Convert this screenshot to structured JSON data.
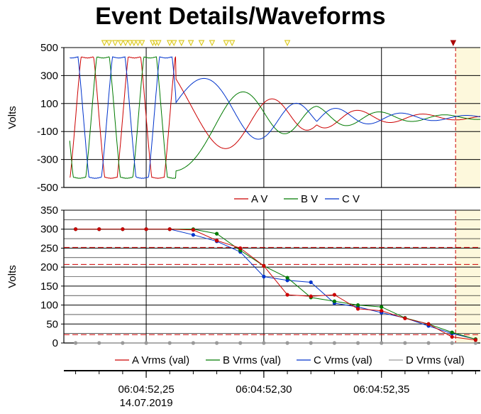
{
  "page": {
    "title": "Event Details/Waveforms"
  },
  "chart_data": [
    {
      "type": "line",
      "ylabel": "Volts",
      "ylim": [
        -500,
        500
      ],
      "yticks": [
        500,
        300,
        100,
        -100,
        -300,
        -500
      ],
      "ytick_labels": [
        "500",
        "300",
        "100",
        "-100",
        "-300",
        "-500"
      ],
      "grid": true,
      "legend_position": "bottom",
      "series": [
        {
          "name": "A V",
          "color": "#cc0000",
          "phase_deg": 0
        },
        {
          "name": "B V",
          "color": "#007a00",
          "phase_deg": -120
        },
        {
          "name": "C V",
          "color": "#0033cc",
          "phase_deg": 120
        }
      ],
      "waveform": {
        "t_start": 0.2175,
        "t_end": 0.392,
        "frequency_hz": 50,
        "steady_amplitude": 430,
        "decay_start": 0.2625,
        "decay_tau": 0.038
      },
      "event_markers_color": "#d4c000",
      "trigger_marker_color": "#aa0000"
    },
    {
      "type": "line",
      "ylabel": "Volts",
      "ylim": [
        0,
        350
      ],
      "yticks": [
        0,
        50,
        100,
        150,
        200,
        250,
        300,
        350
      ],
      "ytick_labels": [
        "0",
        "50",
        "100",
        "150",
        "200",
        "250",
        "300",
        "350"
      ],
      "grid": true,
      "legend_position": "bottom",
      "threshold_lines": [
        252,
        207,
        22
      ],
      "series": [
        {
          "name": "A Vrms (val)",
          "color": "#cc0000",
          "x": [
            0.22,
            0.23,
            0.24,
            0.25,
            0.26,
            0.27,
            0.28,
            0.29,
            0.3,
            0.31,
            0.32,
            0.33,
            0.34,
            0.35,
            0.36,
            0.37,
            0.38,
            0.39
          ],
          "y": [
            300,
            300,
            300,
            300,
            300,
            298,
            270,
            250,
            203,
            127,
            123,
            127,
            90,
            85,
            65,
            50,
            16,
            8
          ]
        },
        {
          "name": "B Vrms (val)",
          "color": "#007a00",
          "x": [
            0.22,
            0.23,
            0.24,
            0.25,
            0.26,
            0.27,
            0.28,
            0.29,
            0.3,
            0.31,
            0.32,
            0.33,
            0.34,
            0.35,
            0.36,
            0.37,
            0.38,
            0.39
          ],
          "y": [
            300,
            300,
            300,
            300,
            300,
            300,
            288,
            244,
            203,
            172,
            120,
            110,
            100,
            95,
            66,
            50,
            28,
            10
          ]
        },
        {
          "name": "C Vrms (val)",
          "color": "#0033cc",
          "x": [
            0.22,
            0.23,
            0.24,
            0.25,
            0.26,
            0.27,
            0.28,
            0.29,
            0.3,
            0.31,
            0.32,
            0.33,
            0.34,
            0.35,
            0.36,
            0.37,
            0.38,
            0.39
          ],
          "y": [
            300,
            300,
            300,
            300,
            300,
            285,
            268,
            240,
            175,
            165,
            160,
            105,
            95,
            80,
            66,
            45,
            25,
            10
          ]
        },
        {
          "name": "D Vrms (val)",
          "color": "#999999",
          "x": [
            0.22,
            0.23,
            0.24,
            0.25,
            0.26,
            0.27,
            0.28,
            0.29,
            0.3,
            0.31,
            0.32,
            0.33,
            0.34,
            0.35,
            0.36,
            0.37,
            0.38,
            0.39
          ],
          "y": [
            0,
            0,
            0,
            0,
            0,
            0,
            0,
            0,
            0,
            0,
            0,
            0,
            0,
            0,
            0,
            0,
            0,
            0
          ]
        }
      ]
    }
  ],
  "x_axis": {
    "range": [
      0.215,
      0.392
    ],
    "major_ticks": [
      0.25,
      0.3,
      0.35
    ],
    "tick_labels": [
      "06:04:52,25",
      "06:04:52,30",
      "06:04:52,35"
    ],
    "date_label": "14.07.2019",
    "grid_lines": [
      0.25,
      0.3,
      0.35
    ],
    "cursor_x": 0.3815,
    "highlight_range": [
      0.3815,
      0.392
    ],
    "highlight_color": "#fdf8dc"
  },
  "event_markers_x": [
    0.2322,
    0.2342,
    0.2368,
    0.2392,
    0.2412,
    0.2432,
    0.2448,
    0.2465,
    0.2482,
    0.2528,
    0.254,
    0.2552,
    0.26,
    0.2618,
    0.265,
    0.269,
    0.2735,
    0.278,
    0.284,
    0.2865,
    0.31,
    0.3805
  ]
}
